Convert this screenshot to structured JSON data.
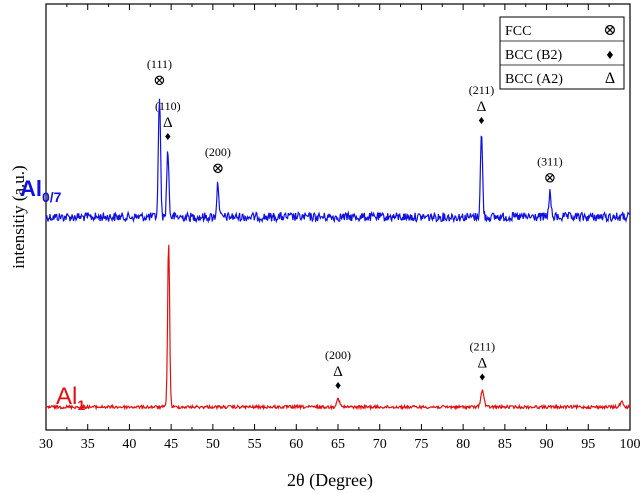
{
  "chart_data": {
    "type": "line",
    "xlabel": "2θ (Degree)",
    "ylabel": "intensitiy (a.u.)",
    "xlim": [
      30,
      100
    ],
    "x_ticks": [
      "30",
      "35",
      "40",
      "45",
      "50",
      "55",
      "60",
      "65",
      "70",
      "75",
      "80",
      "85",
      "90",
      "95",
      "100"
    ],
    "legend": {
      "position": "top-right",
      "entries": [
        {
          "label": "FCC",
          "marker": "⊗"
        },
        {
          "label": "BCC (B2)",
          "marker": "♦"
        },
        {
          "label": "BCC (A2)",
          "marker": "Δ"
        }
      ]
    },
    "series": [
      {
        "name": "Al",
        "name_subscript": "0/7",
        "color": "#1010e0",
        "peaks": [
          {
            "two_theta": 43.6,
            "height": 1.0
          },
          {
            "two_theta": 44.6,
            "height": 0.55
          },
          {
            "two_theta": 50.6,
            "height": 0.28
          },
          {
            "two_theta": 82.2,
            "height": 0.68
          },
          {
            "two_theta": 90.4,
            "height": 0.2
          }
        ]
      },
      {
        "name": "Al",
        "name_subscript": "1",
        "color": "#e01010",
        "peaks": [
          {
            "two_theta": 44.7,
            "height": 1.0
          },
          {
            "two_theta": 65.0,
            "height": 0.05
          },
          {
            "two_theta": 82.3,
            "height": 0.1
          },
          {
            "two_theta": 99.0,
            "height": 0.03
          }
        ]
      }
    ],
    "annotations": [
      {
        "series": 0,
        "two_theta": 43.6,
        "label": "(111)",
        "marker": "⊗"
      },
      {
        "series": 0,
        "two_theta": 44.6,
        "label": "(110)",
        "marker": "Δ♦"
      },
      {
        "series": 0,
        "two_theta": 50.6,
        "label": "(200)",
        "marker": "⊗"
      },
      {
        "series": 0,
        "two_theta": 82.2,
        "label": "(211)",
        "marker": "Δ♦"
      },
      {
        "series": 0,
        "two_theta": 90.4,
        "label": "(311)",
        "marker": "⊗"
      },
      {
        "series": 1,
        "two_theta": 65.0,
        "label": "(200)",
        "marker": "Δ♦"
      },
      {
        "series": 1,
        "two_theta": 82.3,
        "label": "(211)",
        "marker": "Δ♦"
      }
    ]
  }
}
